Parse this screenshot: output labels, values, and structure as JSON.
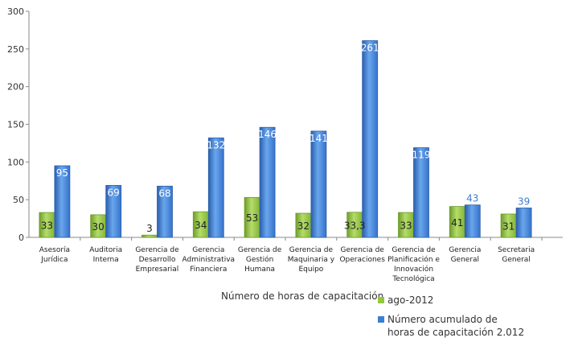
{
  "chart_data": {
    "type": "bar",
    "title": "",
    "xlabel": "",
    "ylabel": "",
    "ylim": [
      0,
      300
    ],
    "yticks": [
      "0",
      "50",
      "100",
      "150",
      "200",
      "250",
      "300"
    ],
    "grid": false,
    "legend_position": "bottom-right",
    "legend_title": "Número de horas de capacitación",
    "categories": [
      [
        "Asesoría",
        "Jurídica"
      ],
      [
        "Auditoria",
        "Interna"
      ],
      [
        "Gerencia de",
        "Desarrollo",
        "Empresarial"
      ],
      [
        "Gerencia",
        "Administrativa",
        "Financiera"
      ],
      [
        "Gerencia de",
        "Gestión",
        "Humana"
      ],
      [
        "Gerencia de",
        "Maquinaria y",
        "Equipo"
      ],
      [
        "Gerencia de",
        "Operaciones"
      ],
      [
        "Gerencia de",
        "Planificación e",
        "Innovación",
        "Tecnológica"
      ],
      [
        "Gerencia",
        "General"
      ],
      [
        "Secretaria",
        "General"
      ]
    ],
    "series": [
      {
        "name": "ago-2012",
        "color": "#92c83e",
        "values": [
          33,
          30,
          3,
          34,
          53,
          32,
          33.3,
          33,
          41,
          31
        ],
        "labels": [
          "33",
          "30",
          "3",
          "34",
          "53",
          "32",
          "33,3",
          "33",
          "41",
          "31"
        ]
      },
      {
        "name_lines": [
          "Número acumulado de",
          "horas de capacitación 2.012"
        ],
        "color": "#3a7fd5",
        "values": [
          95,
          69,
          68,
          132,
          146,
          141,
          261,
          119,
          43,
          39
        ],
        "labels": [
          "95",
          "69",
          "68",
          "132",
          "146",
          "141",
          "261",
          "119",
          "43",
          "39"
        ]
      }
    ]
  }
}
